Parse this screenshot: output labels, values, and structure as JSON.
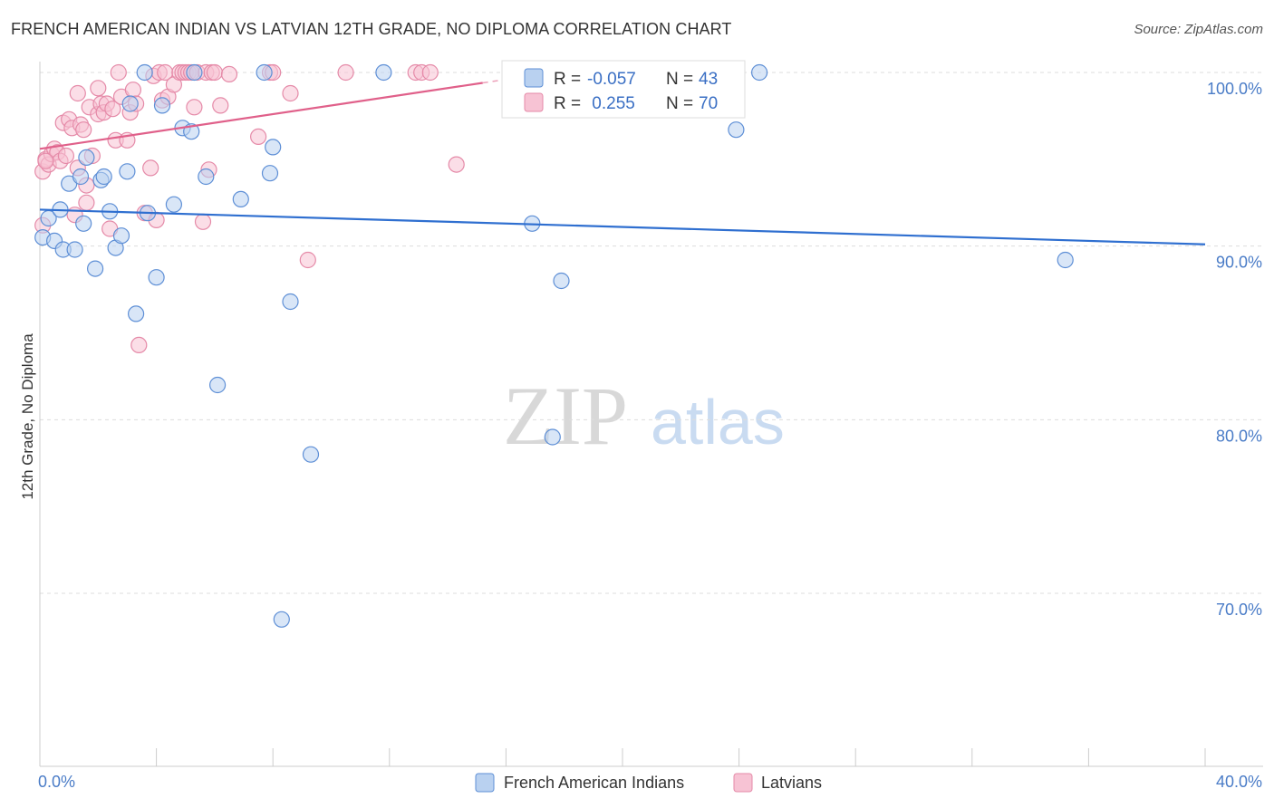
{
  "title": "FRENCH AMERICAN INDIAN VS LATVIAN 12TH GRADE, NO DIPLOMA CORRELATION CHART",
  "source": "Source: ZipAtlas.com",
  "watermark": {
    "zip": "ZIP",
    "atlas": "atlas"
  },
  "legend_top": [
    {
      "r_label": "R =",
      "r_value": "-0.057",
      "n_label": "N =",
      "n_value": "43"
    },
    {
      "r_label": "R =",
      "r_value": " 0.255",
      "n_label": "N =",
      "n_value": "70"
    }
  ],
  "colors": {
    "blue_fill": "#b9d1f0",
    "blue_stroke": "#5e8fd6",
    "blue_line": "#2f6fd0",
    "pink_fill": "#f7c3d4",
    "pink_stroke": "#e58aa8",
    "pink_line": "#e0608a",
    "grid": "#dddddd",
    "axis_text": "#4a7cc7"
  },
  "chart_data": {
    "type": "scatter",
    "xlabel": "",
    "ylabel": "12th Grade, No Diploma",
    "xlim": [
      0,
      40
    ],
    "ylim": [
      60,
      101.5
    ],
    "x_tick_labels": [
      "0.0%",
      "40.0%"
    ],
    "y_ticks": [
      {
        "value": 100,
        "label": "100.0%"
      },
      {
        "value": 90,
        "label": "90.0%"
      },
      {
        "value": 80,
        "label": "80.0%"
      },
      {
        "value": 70,
        "label": "70.0%"
      }
    ],
    "series": [
      {
        "name": "French American Indians",
        "color": "blue",
        "R": -0.057,
        "N": 43,
        "trend": {
          "x": [
            0,
            40
          ],
          "y": [
            92.1,
            90.1
          ]
        },
        "points": [
          [
            0.1,
            90.5
          ],
          [
            0.3,
            91.6
          ],
          [
            0.5,
            90.3
          ],
          [
            0.7,
            92.1
          ],
          [
            0.8,
            89.8
          ],
          [
            1.0,
            93.6
          ],
          [
            1.2,
            89.8
          ],
          [
            1.4,
            94.0
          ],
          [
            1.5,
            91.3
          ],
          [
            1.6,
            95.1
          ],
          [
            1.9,
            88.7
          ],
          [
            2.1,
            93.8
          ],
          [
            2.2,
            94.0
          ],
          [
            2.4,
            92.0
          ],
          [
            2.6,
            89.9
          ],
          [
            2.8,
            90.6
          ],
          [
            3.0,
            94.3
          ],
          [
            3.1,
            98.2
          ],
          [
            3.3,
            86.1
          ],
          [
            3.6,
            100.0
          ],
          [
            3.7,
            91.9
          ],
          [
            4.0,
            88.2
          ],
          [
            4.2,
            98.1
          ],
          [
            4.6,
            92.4
          ],
          [
            4.9,
            96.8
          ],
          [
            5.2,
            96.6
          ],
          [
            5.3,
            100.0
          ],
          [
            5.7,
            94.0
          ],
          [
            6.1,
            82.0
          ],
          [
            6.9,
            92.7
          ],
          [
            7.7,
            100.0
          ],
          [
            7.9,
            94.2
          ],
          [
            8.0,
            95.7
          ],
          [
            8.3,
            68.5
          ],
          [
            8.6,
            86.8
          ],
          [
            9.3,
            78.0
          ],
          [
            11.8,
            100.0
          ],
          [
            16.9,
            91.3
          ],
          [
            17.6,
            79.0
          ],
          [
            17.9,
            88.0
          ],
          [
            23.9,
            96.7
          ],
          [
            24.7,
            100.0
          ],
          [
            35.2,
            89.2
          ]
        ]
      },
      {
        "name": "Latvians",
        "color": "pink",
        "R": 0.255,
        "N": 70,
        "trend": {
          "x": [
            0,
            15.2
          ],
          "y": [
            95.6,
            99.4
          ]
        },
        "points": [
          [
            0.1,
            94.3
          ],
          [
            0.1,
            91.2
          ],
          [
            0.2,
            95.0
          ],
          [
            0.3,
            94.7
          ],
          [
            0.4,
            95.3
          ],
          [
            0.5,
            95.6
          ],
          [
            0.6,
            95.4
          ],
          [
            0.7,
            94.9
          ],
          [
            0.8,
            97.1
          ],
          [
            0.9,
            95.2
          ],
          [
            1.0,
            97.3
          ],
          [
            1.1,
            96.8
          ],
          [
            1.2,
            91.8
          ],
          [
            1.3,
            94.5
          ],
          [
            1.3,
            98.8
          ],
          [
            1.4,
            97.0
          ],
          [
            1.5,
            96.7
          ],
          [
            1.6,
            92.5
          ],
          [
            1.6,
            93.5
          ],
          [
            1.7,
            98.0
          ],
          [
            1.8,
            95.2
          ],
          [
            2.0,
            97.6
          ],
          [
            2.0,
            99.1
          ],
          [
            2.1,
            98.2
          ],
          [
            2.2,
            97.7
          ],
          [
            2.3,
            98.2
          ],
          [
            2.4,
            91.0
          ],
          [
            2.5,
            97.9
          ],
          [
            2.6,
            96.1
          ],
          [
            2.7,
            100.0
          ],
          [
            2.8,
            98.6
          ],
          [
            3.0,
            96.1
          ],
          [
            3.1,
            97.7
          ],
          [
            3.2,
            99.0
          ],
          [
            3.3,
            98.2
          ],
          [
            3.4,
            84.3
          ],
          [
            3.6,
            91.9
          ],
          [
            3.8,
            94.5
          ],
          [
            3.9,
            99.8
          ],
          [
            4.0,
            91.5
          ],
          [
            4.1,
            100.0
          ],
          [
            4.2,
            98.4
          ],
          [
            4.3,
            100.0
          ],
          [
            4.4,
            98.6
          ],
          [
            4.6,
            99.3
          ],
          [
            4.8,
            100.0
          ],
          [
            4.9,
            100.0
          ],
          [
            5.0,
            100.0
          ],
          [
            5.1,
            100.0
          ],
          [
            5.2,
            100.0
          ],
          [
            5.3,
            98.0
          ],
          [
            5.4,
            100.0
          ],
          [
            5.6,
            91.4
          ],
          [
            5.7,
            100.0
          ],
          [
            5.8,
            94.4
          ],
          [
            5.9,
            100.0
          ],
          [
            6.0,
            100.0
          ],
          [
            6.2,
            98.1
          ],
          [
            6.5,
            99.9
          ],
          [
            7.5,
            96.3
          ],
          [
            7.9,
            100.0
          ],
          [
            8.0,
            100.0
          ],
          [
            8.6,
            98.8
          ],
          [
            9.2,
            89.2
          ],
          [
            10.5,
            100.0
          ],
          [
            12.9,
            100.0
          ],
          [
            13.1,
            100.0
          ],
          [
            13.4,
            100.0
          ],
          [
            14.3,
            94.7
          ],
          [
            0.2,
            94.9
          ]
        ]
      }
    ]
  }
}
